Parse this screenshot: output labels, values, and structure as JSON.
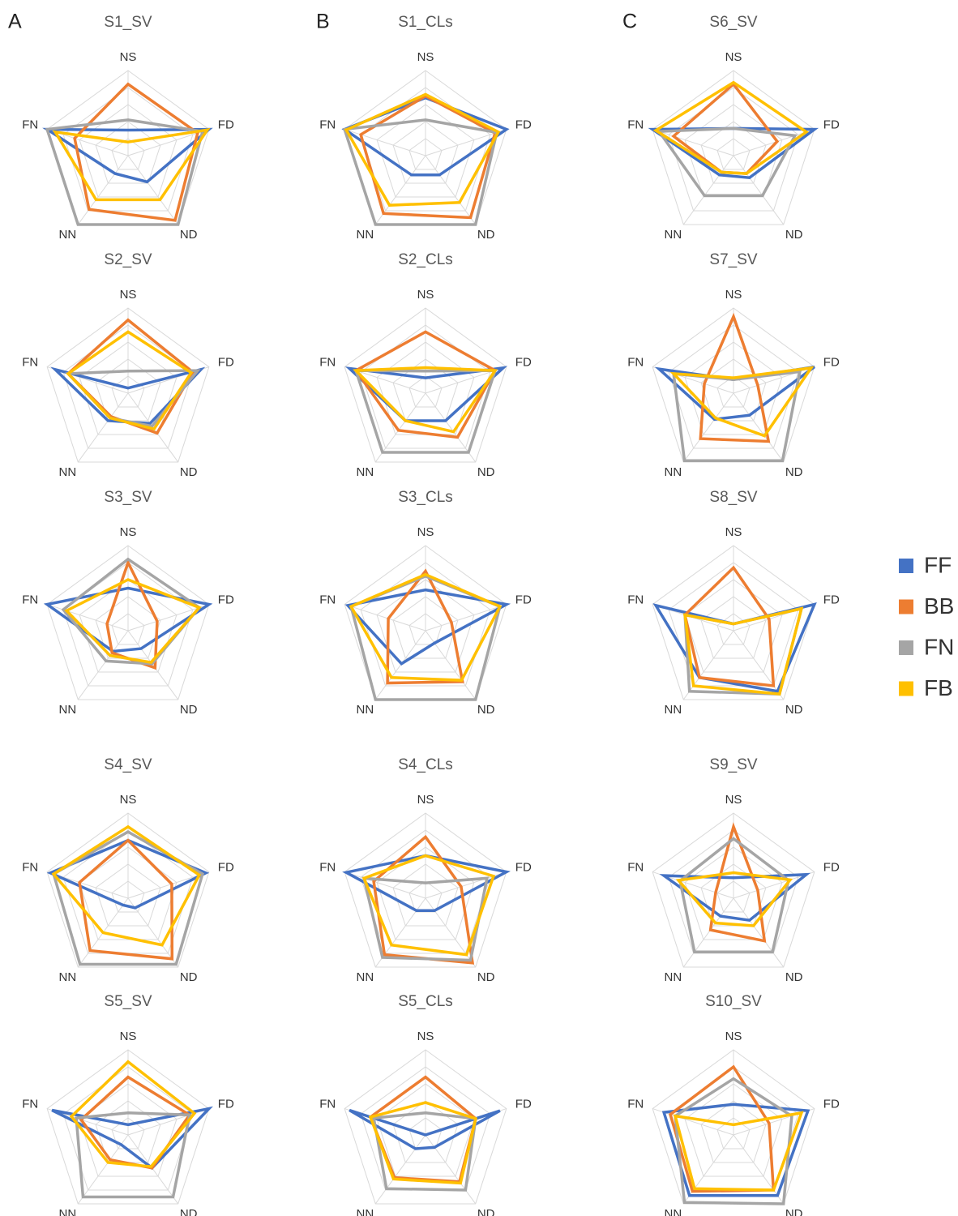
{
  "panel_labels": [
    "A",
    "B",
    "C"
  ],
  "legend": [
    {
      "name": "FF",
      "color": "#4472c4"
    },
    {
      "name": "BB",
      "color": "#ed7d31"
    },
    {
      "name": "FN",
      "color": "#a5a5a5"
    },
    {
      "name": "FB",
      "color": "#ffc000"
    }
  ],
  "chart_data": [
    {
      "type": "radar",
      "title": "S1_SV",
      "categories": [
        "NS",
        "FD",
        "ND",
        "NN",
        "FN"
      ],
      "rlim": [
        0,
        5
      ],
      "rticks": [
        1,
        2,
        3,
        4,
        5
      ],
      "series": [
        {
          "values": [
            1.5,
            5,
            1.9,
            1.3,
            5
          ]
        },
        {
          "values": [
            4.2,
            4.3,
            4.7,
            3.9,
            3.3
          ]
        },
        {
          "values": [
            2.1,
            4.6,
            5,
            5,
            5
          ]
        },
        {
          "values": [
            0.8,
            4.9,
            3.2,
            3.2,
            4.5
          ]
        }
      ]
    },
    {
      "type": "radar",
      "title": "S2_SV",
      "categories": [
        "NS",
        "FD",
        "ND",
        "NN",
        "FN"
      ],
      "rlim": [
        0,
        5
      ],
      "rticks": [
        1,
        2,
        3,
        4,
        5
      ],
      "series": [
        {
          "values": [
            0.3,
            4.5,
            2.2,
            2,
            4.5
          ]
        },
        {
          "values": [
            4.3,
            4,
            2.9,
            1.7,
            3.7
          ]
        },
        {
          "values": [
            1.3,
            4.3,
            2.4,
            1.8,
            3.7
          ]
        },
        {
          "values": [
            3.6,
            3.9,
            2.6,
            1.8,
            3.7
          ]
        }
      ]
    },
    {
      "type": "radar",
      "title": "S3_SV",
      "categories": [
        "NS",
        "FD",
        "ND",
        "NN",
        "FN"
      ],
      "rlim": [
        0,
        5
      ],
      "rticks": [
        1,
        2,
        3,
        4,
        5
      ],
      "series": [
        {
          "values": [
            2.5,
            5,
            1.3,
            1.5,
            5
          ]
        },
        {
          "values": [
            4,
            1.8,
            2.7,
            1.6,
            1.3
          ]
        },
        {
          "values": [
            4.2,
            4.4,
            2.4,
            2.2,
            4
          ]
        },
        {
          "values": [
            3,
            4.4,
            2.3,
            1.8,
            3.8
          ]
        }
      ]
    },
    {
      "type": "radar",
      "title": "S4_SV",
      "categories": [
        "NS",
        "FD",
        "ND",
        "NN",
        "FN"
      ],
      "rlim": [
        0,
        5
      ],
      "rticks": [
        1,
        2,
        3,
        4,
        5
      ],
      "series": [
        {
          "values": [
            3.4,
            4.8,
            0.7,
            0.5,
            4.8
          ]
        },
        {
          "values": [
            3.4,
            2.7,
            4.4,
            3.8,
            3
          ]
        },
        {
          "values": [
            3.9,
            4.6,
            4.8,
            4.8,
            4.6
          ]
        },
        {
          "values": [
            4.2,
            4.4,
            3.4,
            2.5,
            4.6
          ]
        }
      ]
    },
    {
      "type": "radar",
      "title": "S5_SV",
      "categories": [
        "NS",
        "FD",
        "ND",
        "NN",
        "FN"
      ],
      "rlim": [
        0,
        5
      ],
      "rticks": [
        1,
        2,
        3,
        4,
        5
      ],
      "series": [
        {
          "values": [
            0.6,
            5,
            2.4,
            0.7,
            4.7
          ]
        },
        {
          "values": [
            3.4,
            3.8,
            2.4,
            1.8,
            2.9
          ]
        },
        {
          "values": [
            1.3,
            3.8,
            4.5,
            4.5,
            3.2
          ]
        },
        {
          "values": [
            4.3,
            4.1,
            2.3,
            2,
            3.5
          ]
        }
      ]
    },
    {
      "type": "radar",
      "title": "S1_CLs",
      "categories": [
        "NS",
        "FD",
        "ND",
        "NN",
        "FN"
      ],
      "rlim": [
        0,
        5
      ],
      "rticks": [
        1,
        2,
        3,
        4,
        5
      ],
      "series": [
        {
          "values": [
            3.4,
            5,
            1.4,
            1.4,
            5
          ]
        },
        {
          "values": [
            3.5,
            4.3,
            4.5,
            4.2,
            4
          ]
        },
        {
          "values": [
            2.1,
            4.4,
            5,
            5,
            5
          ]
        },
        {
          "values": [
            3.6,
            4.5,
            3.4,
            3.6,
            4.9
          ]
        }
      ]
    },
    {
      "type": "radar",
      "title": "S2_CLs",
      "categories": [
        "NS",
        "FD",
        "ND",
        "NN",
        "FN"
      ],
      "rlim": [
        0,
        5
      ],
      "rticks": [
        1,
        2,
        3,
        4,
        5
      ],
      "series": [
        {
          "values": [
            0.9,
            4.8,
            2,
            2,
            4.7
          ]
        },
        {
          "values": [
            3.6,
            4.3,
            3.2,
            2.7,
            4.3
          ]
        },
        {
          "values": [
            1.3,
            4.3,
            4.3,
            4.3,
            4.3
          ]
        },
        {
          "values": [
            1.5,
            4.3,
            2.8,
            2,
            4.3
          ]
        }
      ]
    },
    {
      "type": "radar",
      "title": "S3_CLs",
      "categories": [
        "NS",
        "FD",
        "ND",
        "NN",
        "FN"
      ],
      "rlim": [
        0,
        5
      ],
      "rticks": [
        1,
        2,
        3,
        4,
        5
      ],
      "series": [
        {
          "values": [
            2.4,
            5,
            0.9,
            2.4,
            4.8
          ]
        },
        {
          "values": [
            3.5,
            1.6,
            3.7,
            3.8,
            2.3
          ]
        },
        {
          "values": [
            3.2,
            4.6,
            5,
            5,
            4.6
          ]
        },
        {
          "values": [
            3.3,
            4.6,
            3.6,
            3.4,
            4.6
          ]
        }
      ]
    },
    {
      "type": "radar",
      "title": "S4_CLs",
      "categories": [
        "NS",
        "FD",
        "ND",
        "NN",
        "FN"
      ],
      "rlim": [
        0,
        5
      ],
      "rticks": [
        1,
        2,
        3,
        4,
        5
      ],
      "series": [
        {
          "values": [
            2.5,
            5,
            0.9,
            0.9,
            4.9
          ]
        },
        {
          "values": [
            3.6,
            2.2,
            4.7,
            4.1,
            3.2
          ]
        },
        {
          "values": [
            0.9,
            3.8,
            4.5,
            4.3,
            3.8
          ]
        },
        {
          "values": [
            2.5,
            4.2,
            4.1,
            3.4,
            3.8
          ]
        }
      ]
    },
    {
      "type": "radar",
      "title": "S5_CLs",
      "categories": [
        "NS",
        "FD",
        "ND",
        "NN",
        "FN"
      ],
      "rlim": [
        0,
        5
      ],
      "rticks": [
        1,
        2,
        3,
        4,
        5
      ],
      "series": [
        {
          "values": [
            0,
            4.6,
            0.9,
            1,
            4.7
          ]
        },
        {
          "values": [
            3.4,
            3.1,
            3.4,
            3.1,
            3.4
          ]
        },
        {
          "values": [
            1.3,
            3.1,
            4,
            3.9,
            3.2
          ]
        },
        {
          "values": [
            1.9,
            3.1,
            3.5,
            3.2,
            3.4
          ]
        }
      ]
    },
    {
      "type": "radar",
      "title": "S6_SV",
      "categories": [
        "NS",
        "FD",
        "ND",
        "NN",
        "FN"
      ],
      "rlim": [
        0,
        5
      ],
      "rticks": [
        1,
        2,
        3,
        4,
        5
      ],
      "series": [
        {
          "values": [
            1.6,
            5,
            1.6,
            1.4,
            5
          ]
        },
        {
          "values": [
            4.2,
            2.7,
            1.3,
            1.2,
            3.7
          ]
        },
        {
          "values": [
            1.6,
            3.8,
            2.9,
            2.9,
            4.6
          ]
        },
        {
          "values": [
            4.3,
            4.5,
            1.3,
            1.2,
            4.8
          ]
        }
      ]
    },
    {
      "type": "radar",
      "title": "S7_SV",
      "categories": [
        "NS",
        "FD",
        "ND",
        "NN",
        "FN"
      ],
      "rlim": [
        0,
        5
      ],
      "rticks": [
        1,
        2,
        3,
        4,
        5
      ],
      "series": [
        {
          "values": [
            0.8,
            5,
            1.6,
            1.9,
            4.6
          ]
        },
        {
          "values": [
            4.5,
            1.5,
            3.5,
            3.3,
            1.8
          ]
        },
        {
          "values": [
            0.8,
            4.1,
            4.9,
            4.9,
            3.7
          ]
        },
        {
          "values": [
            0.9,
            4.8,
            3.1,
            1.8,
            3.7
          ]
        }
      ]
    },
    {
      "type": "radar",
      "title": "S8_SV",
      "categories": [
        "NS",
        "FD",
        "ND",
        "NN",
        "FN"
      ],
      "rlim": [
        0,
        5
      ],
      "rticks": [
        1,
        2,
        3,
        4,
        5
      ],
      "series": [
        {
          "values": [
            0.4,
            5,
            4.4,
            3.4,
            4.8
          ]
        },
        {
          "values": [
            3.7,
            2.2,
            4,
            3.4,
            3
          ]
        },
        {
          "values": [
            0.4,
            4.2,
            4.6,
            4.4,
            3
          ]
        },
        {
          "values": [
            0.4,
            4.2,
            4.6,
            4,
            3
          ]
        }
      ]
    },
    {
      "type": "radar",
      "title": "S9_SV",
      "categories": [
        "NS",
        "FD",
        "ND",
        "NN",
        "FN"
      ],
      "rlim": [
        0,
        5
      ],
      "rticks": [
        1,
        2,
        3,
        4,
        5
      ],
      "series": [
        {
          "values": [
            1.2,
            4.5,
            1.6,
            1.3,
            4.3
          ]
        },
        {
          "values": [
            4.2,
            1.5,
            3.1,
            2.3,
            1.1
          ]
        },
        {
          "values": [
            3.5,
            3.4,
            3.9,
            3.9,
            3.3
          ]
        },
        {
          "values": [
            1.5,
            3.5,
            2,
            1.8,
            3.4
          ]
        }
      ]
    },
    {
      "type": "radar",
      "title": "S10_SV",
      "categories": [
        "NS",
        "FD",
        "ND",
        "NN",
        "FN"
      ],
      "rlim": [
        0,
        5
      ],
      "rticks": [
        1,
        2,
        3,
        4,
        5
      ],
      "series": [
        {
          "values": [
            1.8,
            4.6,
            4.4,
            4.4,
            4.3
          ]
        },
        {
          "values": [
            4,
            2.2,
            4,
            4.1,
            3.9
          ]
        },
        {
          "values": [
            3.3,
            3.6,
            5,
            4.9,
            3.6
          ]
        },
        {
          "values": [
            0.6,
            4.2,
            4,
            3.9,
            3.6
          ]
        }
      ]
    }
  ]
}
